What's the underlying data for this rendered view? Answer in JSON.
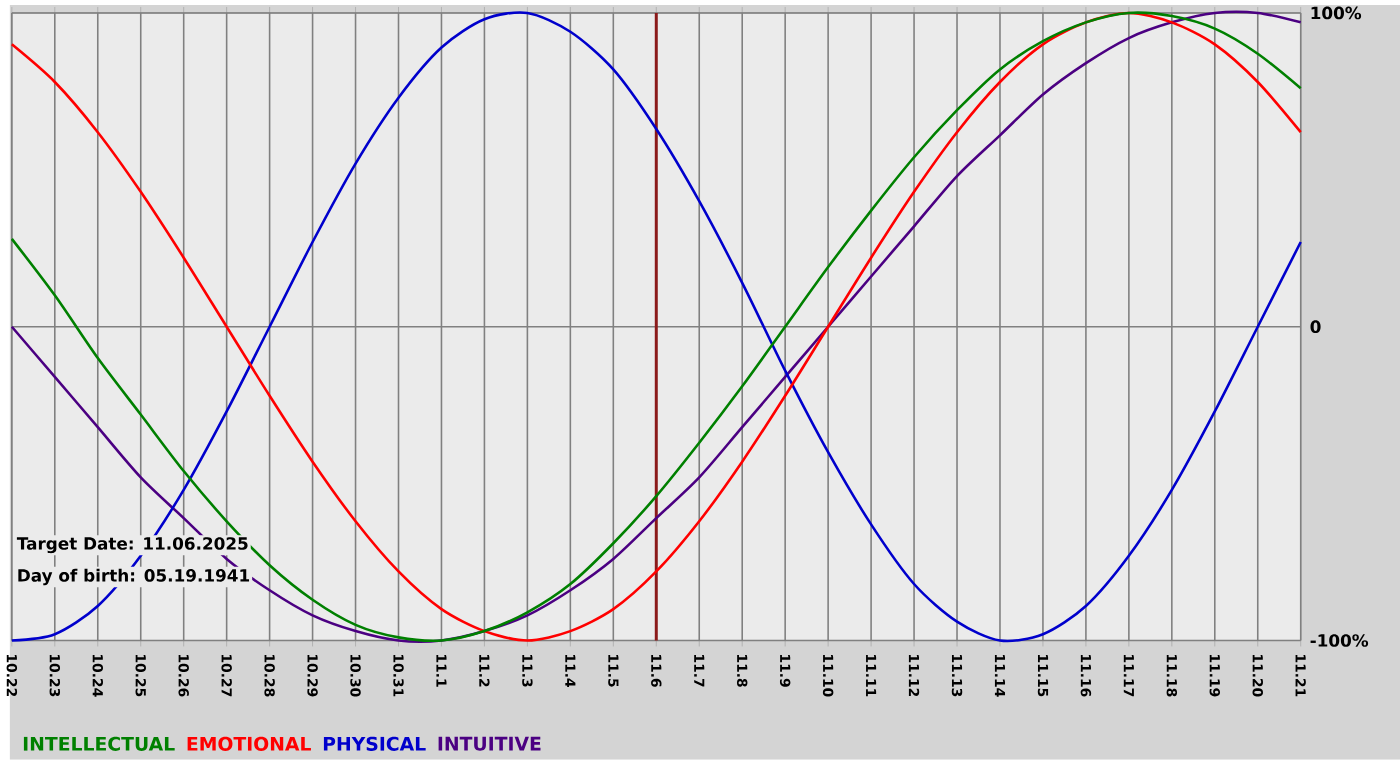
{
  "chart_data": {
    "type": "line",
    "categories": [
      "10.22",
      "10.23",
      "10.24",
      "10.25",
      "10.26",
      "10.27",
      "10.28",
      "10.29",
      "10.30",
      "10.31",
      "11.1",
      "11.2",
      "11.3",
      "11.4",
      "11.5",
      "11.6",
      "11.7",
      "11.8",
      "11.9",
      "11.10",
      "11.11",
      "11.12",
      "11.13",
      "11.14",
      "11.15",
      "11.16",
      "11.17",
      "11.18",
      "11.19",
      "11.20",
      "11.21"
    ],
    "series": [
      {
        "name": "INTELLECTUAL",
        "color": "#008000",
        "values": [
          28,
          10,
          -10,
          -28,
          -46,
          -62,
          -76,
          -87,
          -95,
          -99,
          -100,
          -97,
          -91,
          -82,
          -69,
          -54,
          -37,
          -19,
          0,
          19,
          37,
          54,
          69,
          82,
          91,
          97,
          100,
          99,
          95,
          87,
          76
        ]
      },
      {
        "name": "EMOTIONAL",
        "color": "#ff0000",
        "values": [
          90,
          78,
          62,
          43,
          22,
          0,
          -22,
          -43,
          -62,
          -78,
          -90,
          -97,
          -100,
          -97,
          -90,
          -78,
          -62,
          -43,
          -22,
          0,
          22,
          43,
          62,
          78,
          90,
          97,
          100,
          97,
          90,
          78,
          62
        ]
      },
      {
        "name": "PHYSICAL",
        "color": "#0000cc",
        "values": [
          -100,
          -98,
          -89,
          -73,
          -52,
          -27,
          0,
          27,
          52,
          73,
          89,
          98,
          100,
          94,
          82,
          63,
          40,
          14,
          -14,
          -40,
          -63,
          -82,
          -94,
          -100,
          -98,
          -89,
          -73,
          -52,
          -27,
          0,
          27
        ]
      },
      {
        "name": "INTUITIVE",
        "color": "#4b0082",
        "values": [
          0,
          -16,
          -32,
          -48,
          -61,
          -74,
          -84,
          -92,
          -97,
          -100,
          -100,
          -97,
          -92,
          -84,
          -74,
          -61,
          -48,
          -32,
          -16,
          0,
          16,
          32,
          48,
          61,
          74,
          84,
          92,
          97,
          100,
          100,
          97
        ]
      }
    ],
    "ylim": [
      -100,
      100
    ],
    "yticks": [
      {
        "value": -100,
        "label": "-100%"
      },
      0,
      {
        "value": 100,
        "label": "100%"
      }
    ],
    "grid": true,
    "legend": "bottom",
    "marker": "none",
    "ref_lines": [
      {
        "axis": "x",
        "value": "11.6",
        "color": "#8b1a1a"
      }
    ],
    "annotations": [
      "Target Date: 11.06.2025",
      "Day of birth: 05.19.1941"
    ]
  }
}
